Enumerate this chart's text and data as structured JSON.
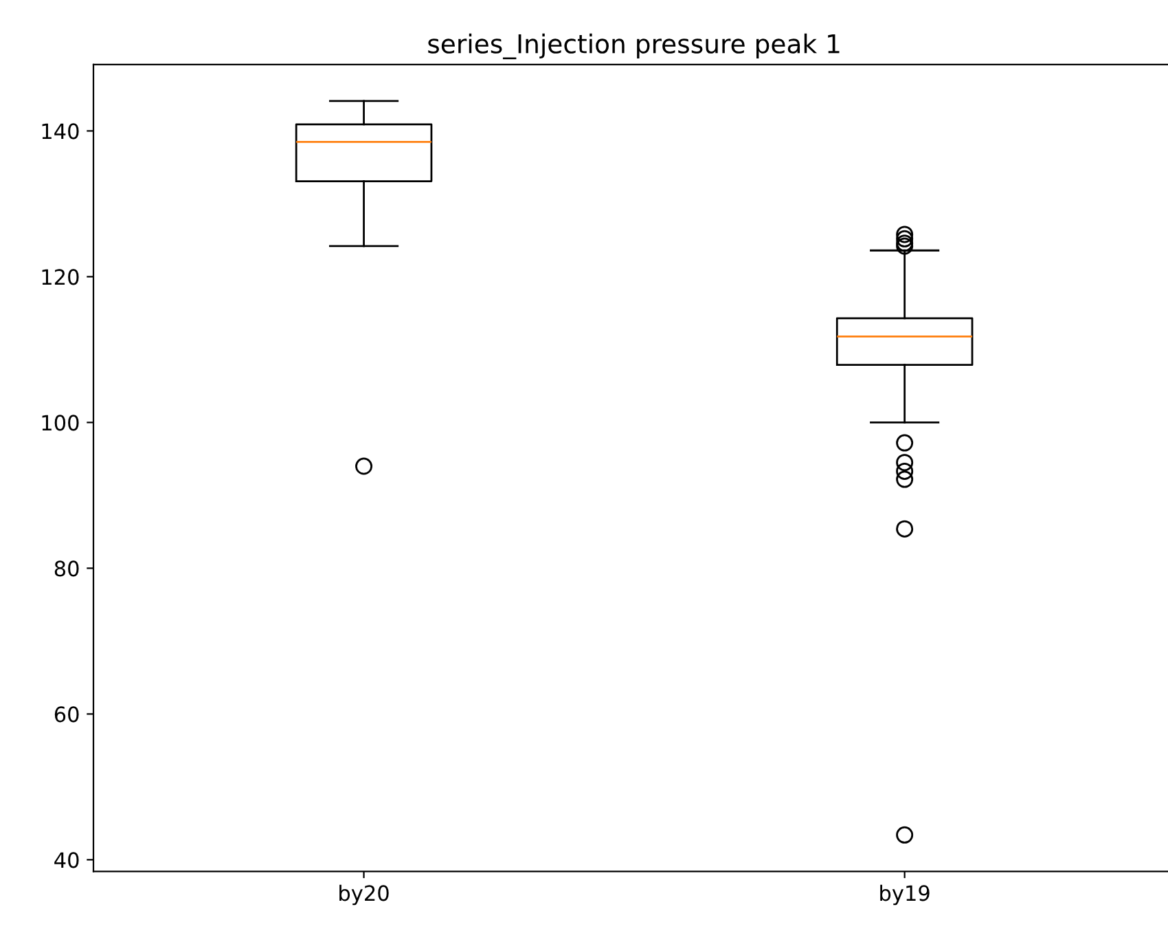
{
  "chart_data": {
    "type": "box",
    "title": "series_Injection pressure peak 1",
    "categories": [
      "by20",
      "by19"
    ],
    "boxes": [
      {
        "low": 124.2,
        "q1": 133.1,
        "median": 138.5,
        "q3": 140.9,
        "high": 144.1,
        "outliers": [
          94.0
        ]
      },
      {
        "low": 100.0,
        "q1": 107.9,
        "median": 111.8,
        "q3": 114.3,
        "high": 123.6,
        "outliers": [
          125.8,
          125.2,
          124.6,
          124.2,
          97.2,
          94.5,
          93.3,
          92.2,
          85.4,
          43.4
        ]
      }
    ],
    "ylim": [
      38.4,
      149.1
    ],
    "yticks": [
      40,
      60,
      80,
      100,
      120,
      140
    ],
    "grid": false
  }
}
